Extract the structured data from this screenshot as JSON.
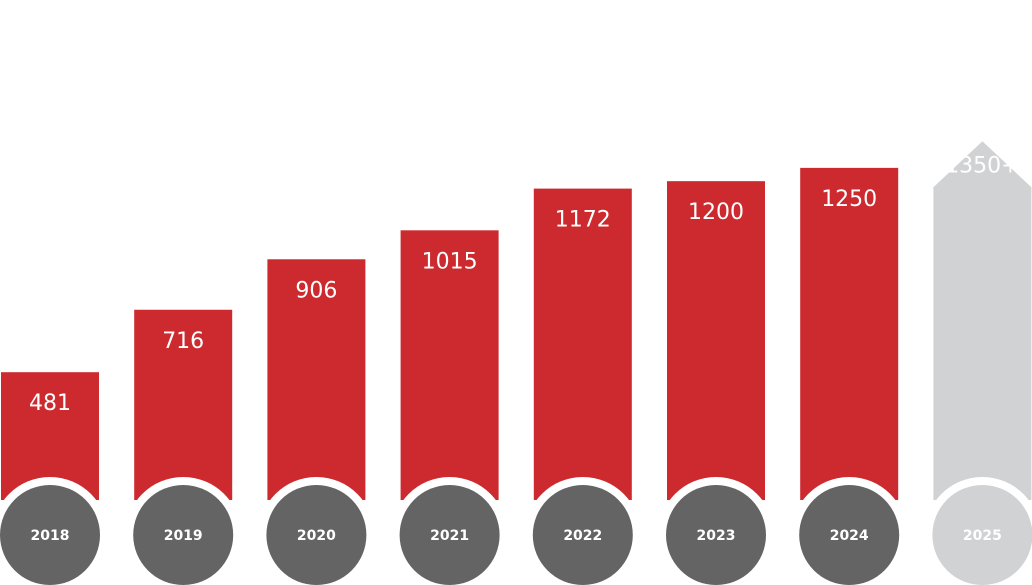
{
  "chart_data": {
    "type": "bar",
    "title": "",
    "xlabel": "",
    "ylabel": "",
    "categories": [
      "2018",
      "2019",
      "2020",
      "2021",
      "2022",
      "2023",
      "2024",
      "2025"
    ],
    "values": [
      481,
      716,
      906,
      1015,
      1172,
      1200,
      1250,
      1350
    ],
    "data_labels": [
      "481",
      "716",
      "906",
      "1015",
      "1172",
      "1200",
      "1250",
      "1350+"
    ],
    "projected": [
      false,
      false,
      false,
      false,
      false,
      false,
      false,
      true
    ],
    "ylim": [
      0,
      1350
    ],
    "grid": false,
    "legend": "none"
  },
  "colors": {
    "bar": "#cc2a2e",
    "projected_bar": "#d1d2d4",
    "year_circle": "#646464",
    "projected_circle": "#d1d2d4",
    "label_text": "#ffffff",
    "background": "#ffffff"
  }
}
